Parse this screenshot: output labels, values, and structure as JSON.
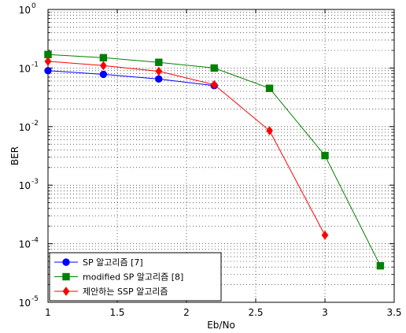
{
  "chart_data": {
    "type": "line",
    "title": "",
    "xlabel": "Eb/No",
    "ylabel": "BER",
    "xlim": [
      1,
      3.5
    ],
    "ylim": [
      1e-05,
      1
    ],
    "yscale": "log",
    "grid": "dotted, major and minor",
    "x_ticks": [
      "1",
      "1.5",
      "2",
      "2.5",
      "3",
      "3.5"
    ],
    "y_ticks": [
      {
        "base": "10",
        "exp": "-5"
      },
      {
        "base": "10",
        "exp": "-4"
      },
      {
        "base": "10",
        "exp": "-3"
      },
      {
        "base": "10",
        "exp": "-2"
      },
      {
        "base": "10",
        "exp": "-1"
      },
      {
        "base": "10",
        "exp": "0"
      }
    ],
    "legend_position": "bottom-left",
    "series": [
      {
        "name": "SP 알고리즘 [7]",
        "color": "#0000ff",
        "marker": "circle",
        "x": [
          1.0,
          1.4,
          1.8,
          2.2
        ],
        "y": [
          0.09,
          0.078,
          0.065,
          0.05
        ]
      },
      {
        "name": "modified SP 알고리즘 [8]",
        "color": "#008000",
        "marker": "square",
        "x": [
          1.0,
          1.4,
          1.8,
          2.2,
          2.6,
          3.0,
          3.4
        ],
        "y": [
          0.17,
          0.15,
          0.125,
          0.1,
          0.045,
          0.0032,
          4.2e-05
        ]
      },
      {
        "name": "제안하는 SSP 알고리즘",
        "color": "#ff0000",
        "marker": "diamond",
        "x": [
          1.0,
          1.4,
          1.8,
          2.2,
          2.6,
          3.0
        ],
        "y": [
          0.13,
          0.11,
          0.088,
          0.052,
          0.0085,
          0.00014
        ]
      }
    ]
  }
}
